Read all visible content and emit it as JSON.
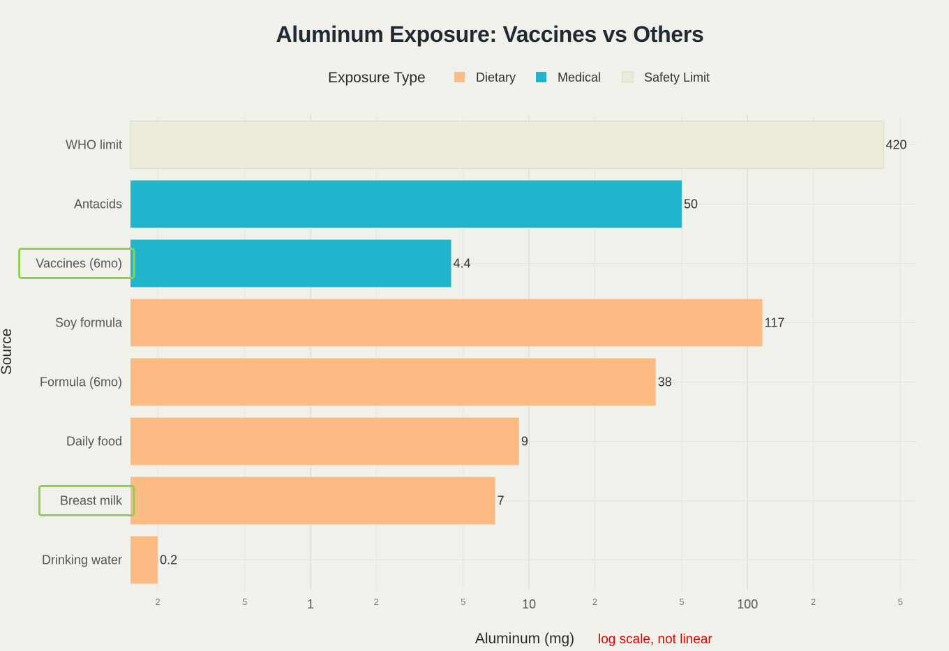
{
  "chart_data": {
    "type": "bar",
    "orientation": "horizontal",
    "title": "Aluminum Exposure: Vaccines vs Others",
    "xlabel": "Aluminum (mg)",
    "ylabel": "Source",
    "x_scale": "log",
    "xlim": [
      0.15,
      600
    ],
    "grid": true,
    "legend": {
      "title": "Exposure Type",
      "position": "top",
      "entries": [
        {
          "name": "Dietary",
          "color": "#fdbb84"
        },
        {
          "name": "Medical",
          "color": "#20b5cc"
        },
        {
          "name": "Safety Limit",
          "color": "#ebebd8"
        }
      ]
    },
    "categories": [
      "WHO limit",
      "Antacids",
      "Vaccines (6mo)",
      "Soy formula",
      "Formula (6mo)",
      "Daily food",
      "Breast milk",
      "Drinking water"
    ],
    "values": [
      420,
      50,
      4.4,
      117,
      38,
      9,
      7,
      0.2
    ],
    "value_labels": [
      "420",
      "50",
      "4.4",
      "117",
      "38",
      "9",
      "7",
      "0.2"
    ],
    "types": [
      "Safety Limit",
      "Medical",
      "Medical",
      "Dietary",
      "Dietary",
      "Dietary",
      "Dietary",
      "Dietary"
    ],
    "x_ticks": [
      {
        "value": 0.2,
        "label": "2",
        "minor": true
      },
      {
        "value": 0.5,
        "label": "5",
        "minor": true
      },
      {
        "value": 1,
        "label": "1",
        "minor": false
      },
      {
        "value": 2,
        "label": "2",
        "minor": true
      },
      {
        "value": 5,
        "label": "5",
        "minor": true
      },
      {
        "value": 10,
        "label": "10",
        "minor": false
      },
      {
        "value": 20,
        "label": "2",
        "minor": true
      },
      {
        "value": 50,
        "label": "5",
        "minor": true
      },
      {
        "value": 100,
        "label": "100",
        "minor": false
      },
      {
        "value": 200,
        "label": "2",
        "minor": true
      },
      {
        "value": 500,
        "label": "5",
        "minor": true
      }
    ],
    "highlighted_categories": [
      "Vaccines (6mo)",
      "Breast milk"
    ],
    "annotation": "log scale, not linear"
  }
}
